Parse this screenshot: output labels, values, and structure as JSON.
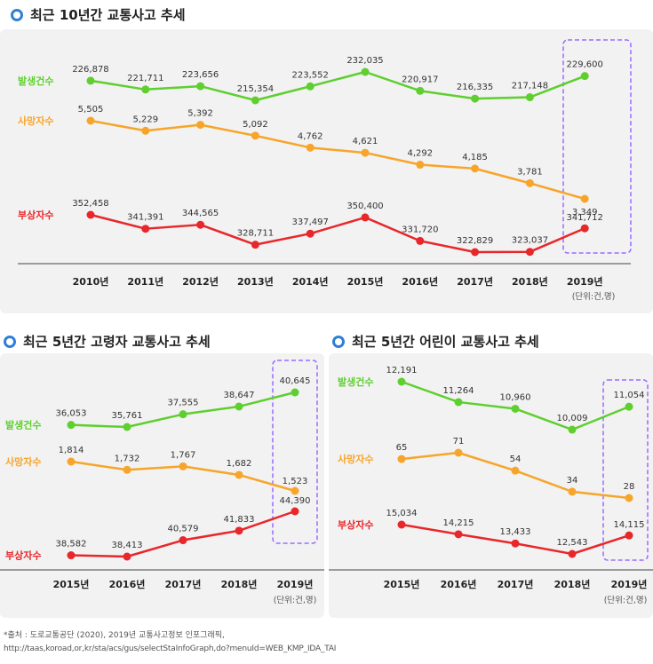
{
  "titles": {
    "top": "최근 10년간 교통사고 추세",
    "left": "최근 5년간 고령자 교통사고 추세",
    "right": "최근 5년간 어린이 교통사고 추세"
  },
  "colors": {
    "accidents": "#5ecf2f",
    "deaths": "#f7a52a",
    "injuries": "#e8272a",
    "highlight": "#9b6bff",
    "bullet": "#2f7fd6"
  },
  "chart_data": [
    {
      "type": "line",
      "title": "최근 10년간 교통사고 추세",
      "unit": "(단위:건,명)",
      "categories": [
        "2010년",
        "2011년",
        "2012년",
        "2013년",
        "2014년",
        "2015년",
        "2016년",
        "2017년",
        "2018년",
        "2019년"
      ],
      "highlight": "2019년",
      "series": [
        {
          "name": "발생건수",
          "values": [
            226878,
            221711,
            223656,
            215354,
            223552,
            232035,
            220917,
            216335,
            217148,
            229600
          ],
          "labels": [
            "226,878",
            "221,711",
            "223,656",
            "215,354",
            "223,552",
            "232,035",
            "220,917",
            "216,335",
            "217,148",
            "229,600"
          ]
        },
        {
          "name": "사망자수",
          "values": [
            5505,
            5229,
            5392,
            5092,
            4762,
            4621,
            4292,
            4185,
            3781,
            3349
          ],
          "labels": [
            "5,505",
            "5,229",
            "5,392",
            "5,092",
            "4,762",
            "4,621",
            "4,292",
            "4,185",
            "3,781",
            "3,349"
          ]
        },
        {
          "name": "부상자수",
          "values": [
            352458,
            341391,
            344565,
            328711,
            337497,
            350400,
            331720,
            322829,
            323037,
            341712
          ],
          "labels": [
            "352,458",
            "341,391",
            "344,565",
            "328,711",
            "337,497",
            "350,400",
            "331,720",
            "322,829",
            "323,037",
            "341,712"
          ]
        }
      ]
    },
    {
      "type": "line",
      "title": "최근 5년간 고령자 교통사고 추세",
      "unit": "(단위:건,명)",
      "categories": [
        "2015년",
        "2016년",
        "2017년",
        "2018년",
        "2019년"
      ],
      "highlight": "2019년",
      "series": [
        {
          "name": "발생건수",
          "values": [
            36053,
            35761,
            37555,
            38647,
            40645
          ],
          "labels": [
            "36,053",
            "35,761",
            "37,555",
            "38,647",
            "40,645"
          ]
        },
        {
          "name": "사망자수",
          "values": [
            1814,
            1732,
            1767,
            1682,
            1523
          ],
          "labels": [
            "1,814",
            "1,732",
            "1,767",
            "1,682",
            "1,523"
          ]
        },
        {
          "name": "부상자수",
          "values": [
            38582,
            38413,
            40579,
            41833,
            44390
          ],
          "labels": [
            "38,582",
            "38,413",
            "40,579",
            "41,833",
            "44,390"
          ]
        }
      ]
    },
    {
      "type": "line",
      "title": "최근 5년간 어린이 교통사고 추세",
      "unit": "(단위:건,명)",
      "categories": [
        "2015년",
        "2016년",
        "2017년",
        "2018년",
        "2019년"
      ],
      "highlight": "2019년",
      "series": [
        {
          "name": "발생건수",
          "values": [
            12191,
            11264,
            10960,
            10009,
            11054
          ],
          "labels": [
            "12,191",
            "11,264",
            "10,960",
            "10,009",
            "11,054"
          ]
        },
        {
          "name": "사망자수",
          "values": [
            65,
            71,
            54,
            34,
            28
          ],
          "labels": [
            "65",
            "71",
            "54",
            "34",
            "28"
          ]
        },
        {
          "name": "부상자수",
          "values": [
            15034,
            14215,
            13433,
            12543,
            14115
          ],
          "labels": [
            "15,034",
            "14,215",
            "13,433",
            "12,543",
            "14,115"
          ]
        }
      ]
    }
  ],
  "source": {
    "line1": "*출처 : 도로교통공단 (2020), 2019년 교통사고정보 인포그래픽,",
    "line2": "http://taas,koroad,or,kr/sta/acs/gus/selectStaInfoGraph,do?menuId=WEB_KMP_IDA_TAI"
  }
}
